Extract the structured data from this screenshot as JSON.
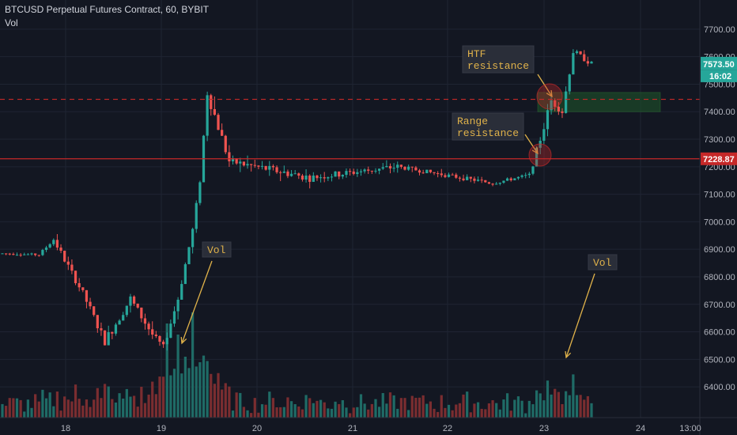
{
  "chart_title": "BTCUSD Perpetual Futures Contract, 60, BYBIT",
  "volume_label": "Vol",
  "colors": {
    "background": "#131722",
    "grid": "#1f2433",
    "up": "#26a69a",
    "down": "#ef5350",
    "up_vol": "#1f6b66",
    "down_vol": "#7a2d30",
    "resistance_line": "#c62828",
    "annotation": "#e0b24a",
    "zone": "#1d4d2a"
  },
  "annotations": {
    "htf": [
      "HTF",
      "resistance"
    ],
    "range": [
      "Range",
      "resistance"
    ],
    "vol_left": "Vol",
    "vol_right": "Vol"
  },
  "price_tags": {
    "last_price": "7573.50",
    "countdown": "16:02",
    "line_level": "7228.87"
  },
  "chart_data": {
    "type": "candlestick",
    "title": "BTCUSD Perpetual Futures Contract, 60, BYBIT",
    "y_ticks": [
      "7700.00",
      "7600.00",
      "7500.00",
      "7400.00",
      "7300.00",
      "7200.00",
      "7100.00",
      "7000.00",
      "6900.00",
      "6800.00",
      "6700.00",
      "6600.00",
      "6500.00",
      "6400.00"
    ],
    "ylim": [
      6340,
      7760
    ],
    "x_ticks": [
      "18",
      "19",
      "20",
      "21",
      "22",
      "23",
      "24",
      "13:00"
    ],
    "horizontal_lines": [
      {
        "price": 7228.87,
        "style": "solid"
      },
      {
        "price": 7445,
        "style": "dashed"
      }
    ],
    "zone": {
      "from": 7400,
      "to": 7470
    },
    "last_price": 7573.5,
    "segments": [
      {
        "count": 11,
        "start": 6885,
        "end": 6880,
        "noise": 8
      },
      {
        "count": 4,
        "start": 6880,
        "end": 6935,
        "noise": 10
      },
      {
        "count": 8,
        "start": 6935,
        "end": 6740,
        "noise": 25
      },
      {
        "count": 6,
        "start": 6740,
        "end": 6565,
        "noise": 30
      },
      {
        "count": 7,
        "start": 6565,
        "end": 6720,
        "noise": 35
      },
      {
        "count": 6,
        "start": 6720,
        "end": 6590,
        "noise": 30
      },
      {
        "count": 3,
        "start": 6590,
        "end": 6545,
        "noise": 20
      },
      {
        "count": 4,
        "start": 6545,
        "end": 6720,
        "noise": 25
      },
      {
        "count": 4,
        "start": 6720,
        "end": 6970,
        "noise": 25
      },
      {
        "count": 2,
        "start": 6970,
        "end": 7150,
        "noise": 20
      },
      {
        "count": 2,
        "start": 7150,
        "end": 7470,
        "noise": 40
      },
      {
        "count": 6,
        "start": 7470,
        "end": 7220,
        "noise": 40
      },
      {
        "count": 22,
        "start": 7220,
        "end": 7160,
        "noise": 30
      },
      {
        "count": 24,
        "start": 7160,
        "end": 7200,
        "noise": 25
      },
      {
        "count": 26,
        "start": 7200,
        "end": 7140,
        "noise": 15
      },
      {
        "count": 10,
        "start": 7140,
        "end": 7170,
        "noise": 12
      },
      {
        "count": 3,
        "start": 7170,
        "end": 7300,
        "noise": 25
      },
      {
        "count": 3,
        "start": 7300,
        "end": 7440,
        "noise": 35
      },
      {
        "count": 3,
        "start": 7440,
        "end": 7400,
        "noise": 25
      },
      {
        "count": 3,
        "start": 7400,
        "end": 7620,
        "noise": 30
      },
      {
        "count": 5,
        "start": 7620,
        "end": 7573.5,
        "noise": 20
      }
    ],
    "volume_spikes": [
      {
        "index": 45,
        "value": 0.85
      },
      {
        "index": 48,
        "value": 0.75
      },
      {
        "index": 50,
        "value": 0.55
      },
      {
        "index": 52,
        "value": 0.95
      },
      {
        "index": 54,
        "value": 0.5
      },
      {
        "index": 170,
        "value": 0.35
      },
      {
        "index": 172,
        "value": 0.45
      },
      {
        "index": 175,
        "value": 0.3
      },
      {
        "index": 178,
        "value": 0.4
      },
      {
        "index": 180,
        "value": 0.55
      }
    ]
  }
}
